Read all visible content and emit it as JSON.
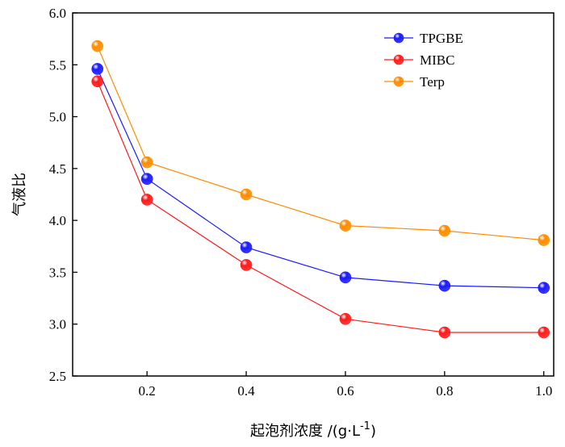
{
  "chart_data": {
    "type": "line",
    "x": [
      0.1,
      0.2,
      0.4,
      0.6,
      0.8,
      1.0
    ],
    "series": [
      {
        "name": "TPGBE",
        "color": "#1a1aff",
        "values": [
          5.46,
          4.4,
          3.74,
          3.45,
          3.37,
          3.35
        ]
      },
      {
        "name": "MIBC",
        "color": "#ff1a1a",
        "values": [
          5.34,
          4.2,
          3.57,
          3.05,
          2.92,
          2.92
        ]
      },
      {
        "name": "Terp",
        "color": "#ff8c00",
        "values": [
          5.68,
          4.56,
          4.25,
          3.95,
          3.9,
          3.81
        ]
      }
    ],
    "xlabel": "起泡剂浓度 /(g·L",
    "xlabel_superscript": "-1",
    "xlabel_suffix": ")",
    "ylabel": "气液比",
    "xlim": [
      0.05,
      1.02
    ],
    "ylim": [
      2.5,
      6.0
    ],
    "xticks": [
      0.2,
      0.4,
      0.6,
      0.8,
      1.0
    ],
    "xtick_labels": [
      "0.2",
      "0.4",
      "0.6",
      "0.8",
      "1.0"
    ],
    "yticks": [
      2.5,
      3.0,
      3.5,
      4.0,
      4.5,
      5.0,
      5.5,
      6.0
    ],
    "ytick_labels": [
      "2.5",
      "3.0",
      "3.5",
      "4.0",
      "4.5",
      "5.0",
      "5.5",
      "6.0"
    ],
    "grid": false,
    "legend_position": "top-right"
  }
}
